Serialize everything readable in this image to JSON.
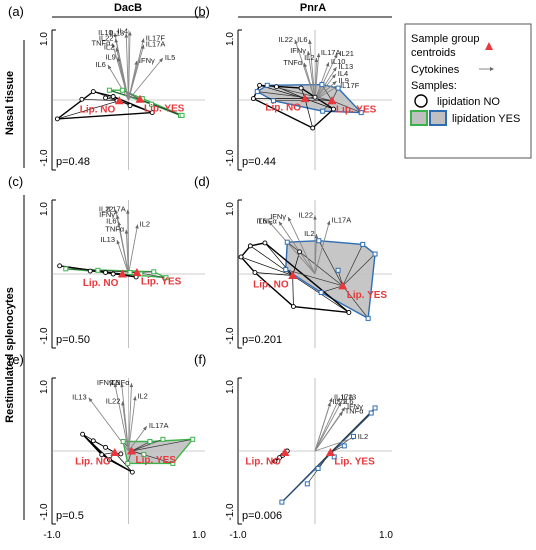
{
  "figure": {
    "col_titles": [
      "DacB",
      "PnrA"
    ],
    "row_titles": [
      "Nasal tissue",
      "Restimulated splenocytes"
    ]
  },
  "legend": {
    "centroid_label_line1": "Sample group",
    "centroid_label_line2": "centroids",
    "cytokines_label": "Cytokines",
    "samples_label": "Samples:",
    "lip_no_label": "lipidation NO",
    "lip_yes_label": "lipidation YES"
  },
  "colors": {
    "centroid": "#e8383d",
    "lip_no": "#000000",
    "lip_yes_dacb": "#3bb34a",
    "lip_yes_pnra": "#2e6db4",
    "hull_fill": "#c0c0c0",
    "arrow": "#888888"
  },
  "chart_data": [
    {
      "id": "a",
      "type": "scatter",
      "panel_label": "(a)",
      "xlim": [
        -1,
        1
      ],
      "ylim": [
        -1,
        1
      ],
      "x_ticks": [],
      "y_ticks": [
        "1.0",
        "-1.0"
      ],
      "p_value": "p=0.48",
      "yes_color": "lip_yes_dacb",
      "arrows": [
        {
          "name": "IL10",
          "x": -0.18,
          "y": 0.96
        },
        {
          "name": "IL22",
          "x": -0.17,
          "y": 0.88
        },
        {
          "name": "TNFα",
          "x": -0.21,
          "y": 0.81
        },
        {
          "name": "IL2",
          "x": -0.16,
          "y": 0.75
        },
        {
          "name": "IL9",
          "x": -0.14,
          "y": 0.61
        },
        {
          "name": "IL6",
          "x": -0.27,
          "y": 0.5
        },
        {
          "name": "IFNγ",
          "x": 0.11,
          "y": 0.56
        },
        {
          "name": "IL13",
          "x": -0.03,
          "y": 0.95
        },
        {
          "name": "IL4",
          "x": 0.02,
          "y": 0.98
        },
        {
          "name": "IL17F",
          "x": 0.2,
          "y": 0.88
        },
        {
          "name": "IL17A",
          "x": 0.2,
          "y": 0.79
        },
        {
          "name": "IL5",
          "x": 0.45,
          "y": 0.6
        }
      ],
      "centroids": [
        {
          "label": "Lip. NO",
          "x": -0.12,
          "y": -0.01
        },
        {
          "label": "Lip. YES",
          "x": 0.15,
          "y": 0.01
        }
      ],
      "no_points": [
        [
          -0.93,
          -0.27
        ],
        [
          -0.61,
          0.01
        ],
        [
          -0.46,
          0.12
        ],
        [
          -0.2,
          0.05
        ],
        [
          0.02,
          -0.08
        ],
        [
          0.31,
          -0.18
        ],
        [
          -0.15,
          -0.01
        ],
        [
          -0.3,
          0.03
        ]
      ],
      "no_hull": [
        [
          -0.93,
          -0.27
        ],
        [
          -0.46,
          0.12
        ],
        [
          -0.2,
          0.05
        ],
        [
          0.31,
          -0.18
        ]
      ],
      "yes_points": [
        [
          -0.25,
          0.14
        ],
        [
          -0.08,
          0.14
        ],
        [
          0.3,
          -0.06
        ],
        [
          0.68,
          -0.22
        ],
        [
          0.7,
          -0.22
        ],
        [
          0.18,
          0.02
        ]
      ],
      "yes_hull": [
        [
          -0.25,
          0.14
        ],
        [
          -0.08,
          0.14
        ],
        [
          0.7,
          -0.22
        ],
        [
          0.68,
          -0.22
        ],
        [
          0.3,
          -0.06
        ]
      ],
      "shade_yes": false
    },
    {
      "id": "b",
      "type": "scatter",
      "panel_label": "(b)",
      "xlim": [
        -1,
        1
      ],
      "ylim": [
        -1,
        1
      ],
      "x_ticks": [],
      "y_ticks": [
        "1.0",
        "-1.0"
      ],
      "p_value": "p=0.44",
      "yes_color": "lip_yes_pnra",
      "arrows": [
        {
          "name": "IL22",
          "x": -0.26,
          "y": 0.86
        },
        {
          "name": "IL6",
          "x": -0.07,
          "y": 0.86
        },
        {
          "name": "IFNγ",
          "x": -0.09,
          "y": 0.7
        },
        {
          "name": "TNFα",
          "x": -0.14,
          "y": 0.53
        },
        {
          "name": "IL17A",
          "x": 0.05,
          "y": 0.67
        },
        {
          "name": "IL21",
          "x": 0.29,
          "y": 0.66
        },
        {
          "name": "IL2",
          "x": 0.02,
          "y": 0.6
        },
        {
          "name": "IL10",
          "x": 0.18,
          "y": 0.54
        },
        {
          "name": "IL13",
          "x": 0.28,
          "y": 0.47
        },
        {
          "name": "IL4",
          "x": 0.27,
          "y": 0.37
        },
        {
          "name": "IL9",
          "x": 0.28,
          "y": 0.27
        },
        {
          "name": "IL17F",
          "x": 0.3,
          "y": 0.2
        }
      ],
      "centroids": [
        {
          "label": "Lip. NO",
          "x": -0.13,
          "y": 0.02
        },
        {
          "label": "Lip. YES",
          "x": 0.22,
          "y": -0.01
        }
      ],
      "no_points": [
        [
          -0.8,
          0.02
        ],
        [
          -0.72,
          0.21
        ],
        [
          -0.5,
          0.19
        ],
        [
          -0.18,
          0.17
        ],
        [
          -0.03,
          -0.4
        ],
        [
          0.24,
          -0.13
        ],
        [
          0.0,
          0.04
        ]
      ],
      "no_hull": [
        [
          -0.8,
          0.02
        ],
        [
          -0.72,
          0.21
        ],
        [
          -0.18,
          0.17
        ],
        [
          0.24,
          -0.13
        ],
        [
          -0.03,
          -0.4
        ]
      ],
      "yes_points": [
        [
          -0.75,
          0.12
        ],
        [
          -0.54,
          -0.01
        ],
        [
          -0.62,
          0.21
        ],
        [
          0.09,
          0.22
        ],
        [
          0.3,
          0.17
        ],
        [
          0.6,
          -0.18
        ],
        [
          0.1,
          -0.16
        ]
      ],
      "yes_hull": [
        [
          -0.75,
          0.12
        ],
        [
          -0.62,
          0.21
        ],
        [
          0.09,
          0.22
        ],
        [
          0.3,
          0.17
        ],
        [
          0.6,
          -0.18
        ],
        [
          0.1,
          -0.16
        ],
        [
          -0.54,
          -0.01
        ]
      ],
      "shade_yes": true
    },
    {
      "id": "c",
      "type": "scatter",
      "panel_label": "(c)",
      "xlim": [
        -1,
        1
      ],
      "ylim": [
        -1,
        1
      ],
      "x_ticks": [],
      "y_ticks": [
        "1.0",
        "-1.0"
      ],
      "p_value": "p=0.50",
      "yes_color": "lip_yes_dacb",
      "arrows": [
        {
          "name": "IL22",
          "x": -0.17,
          "y": 0.87
        },
        {
          "name": "IFNγ",
          "x": -0.15,
          "y": 0.8
        },
        {
          "name": "IL6",
          "x": -0.13,
          "y": 0.71
        },
        {
          "name": "TNFα",
          "x": -0.03,
          "y": 0.6
        },
        {
          "name": "IL13",
          "x": -0.15,
          "y": 0.46
        },
        {
          "name": "IL17A",
          "x": -0.01,
          "y": 0.87
        },
        {
          "name": "IL2",
          "x": 0.12,
          "y": 0.67
        }
      ],
      "centroids": [
        {
          "label": "Lip. NO",
          "x": -0.08,
          "y": 0.0
        },
        {
          "label": "Lip. YES",
          "x": 0.11,
          "y": 0.02
        }
      ],
      "no_points": [
        [
          -0.9,
          0.11
        ],
        [
          -0.5,
          0.04
        ],
        [
          -0.2,
          0.0
        ],
        [
          0.1,
          -0.04
        ],
        [
          -0.3,
          0.02
        ]
      ],
      "no_hull": [
        [
          -0.9,
          0.11
        ],
        [
          0.1,
          -0.04
        ]
      ],
      "yes_points": [
        [
          -0.82,
          0.07
        ],
        [
          -0.4,
          0.05
        ],
        [
          0.02,
          0.02
        ],
        [
          0.33,
          0.03
        ],
        [
          0.49,
          -0.05
        ],
        [
          0.16,
          0.0
        ]
      ],
      "yes_hull": [
        [
          -0.82,
          0.07
        ],
        [
          0.33,
          0.03
        ],
        [
          0.49,
          -0.05
        ]
      ],
      "shade_yes": false
    },
    {
      "id": "d",
      "type": "scatter",
      "panel_label": "(d)",
      "xlim": [
        -1,
        1
      ],
      "ylim": [
        -1,
        1
      ],
      "x_ticks": [],
      "y_ticks": [
        "1.0",
        "-1.0"
      ],
      "p_value": "p=0.201",
      "yes_color": "lip_yes_pnra",
      "arrows": [
        {
          "name": "IL6",
          "x": -0.6,
          "y": 0.71
        },
        {
          "name": "TNFα",
          "x": -0.47,
          "y": 0.71
        },
        {
          "name": "IFNγ",
          "x": -0.35,
          "y": 0.77
        },
        {
          "name": "IL22",
          "x": 0.0,
          "y": 0.79
        },
        {
          "name": "IL17A",
          "x": 0.19,
          "y": 0.72
        },
        {
          "name": "IL2",
          "x": 0.02,
          "y": 0.54
        }
      ],
      "centroids": [
        {
          "label": "Lip. NO",
          "x": -0.29,
          "y": -0.02
        },
        {
          "label": "Lip. YES",
          "x": 0.36,
          "y": -0.16
        }
      ],
      "no_points": [
        [
          -0.96,
          0.23
        ],
        [
          -0.84,
          0.38
        ],
        [
          -0.65,
          0.42
        ],
        [
          -0.78,
          0.02
        ],
        [
          -0.28,
          -0.44
        ],
        [
          0.44,
          -0.52
        ],
        [
          -0.2,
          0.3
        ]
      ],
      "no_hull": [
        [
          -0.96,
          0.23
        ],
        [
          -0.84,
          0.38
        ],
        [
          -0.65,
          0.42
        ],
        [
          0.44,
          -0.52
        ],
        [
          -0.28,
          -0.44
        ],
        [
          -0.78,
          0.02
        ]
      ],
      "yes_points": [
        [
          -0.36,
          0.43
        ],
        [
          -0.38,
          0.06
        ],
        [
          0.05,
          0.45
        ],
        [
          0.62,
          0.4
        ],
        [
          0.78,
          0.27
        ],
        [
          0.69,
          -0.6
        ],
        [
          0.08,
          -0.25
        ],
        [
          0.3,
          0.05
        ]
      ],
      "yes_hull": [
        [
          -0.36,
          0.43
        ],
        [
          0.05,
          0.45
        ],
        [
          0.62,
          0.4
        ],
        [
          0.78,
          0.27
        ],
        [
          0.69,
          -0.6
        ],
        [
          0.08,
          -0.25
        ],
        [
          -0.38,
          0.06
        ]
      ],
      "shade_yes": true
    },
    {
      "id": "e",
      "type": "scatter",
      "panel_label": "(e)",
      "xlim": [
        -1,
        1
      ],
      "ylim": [
        -1,
        1
      ],
      "x_ticks": [
        "-1.0",
        "1.0"
      ],
      "y_ticks": [
        "1.0",
        "-1.0"
      ],
      "p_value": "p=0.5",
      "yes_color": "lip_yes_dacb",
      "arrows": [
        {
          "name": "IFNγ",
          "x": -0.18,
          "y": 0.93
        },
        {
          "name": "IL6",
          "x": -0.09,
          "y": 0.93
        },
        {
          "name": "TNFα",
          "x": 0.04,
          "y": 0.93
        },
        {
          "name": "IL13",
          "x": -0.52,
          "y": 0.73
        },
        {
          "name": "IL22",
          "x": -0.08,
          "y": 0.68
        },
        {
          "name": "IL2",
          "x": 0.09,
          "y": 0.75
        },
        {
          "name": "IL17A",
          "x": 0.24,
          "y": 0.34
        }
      ],
      "centroids": [
        {
          "label": "Lip. NO",
          "x": -0.18,
          "y": -0.02
        },
        {
          "label": "Lip. YES",
          "x": 0.04,
          "y": 0.0
        }
      ],
      "no_points": [
        [
          -0.6,
          0.23
        ],
        [
          -0.46,
          0.14
        ],
        [
          -0.35,
          -0.05
        ],
        [
          -0.25,
          -0.12
        ],
        [
          0.05,
          -0.29
        ],
        [
          -0.1,
          -0.04
        ],
        [
          -0.3,
          0.05
        ]
      ],
      "no_hull": [
        [
          -0.6,
          0.23
        ],
        [
          -0.25,
          -0.12
        ],
        [
          0.05,
          -0.29
        ],
        [
          -0.35,
          -0.05
        ]
      ],
      "yes_points": [
        [
          -0.07,
          0.13
        ],
        [
          0.28,
          0.13
        ],
        [
          0.45,
          0.16
        ],
        [
          0.84,
          0.16
        ],
        [
          0.58,
          -0.17
        ],
        [
          -0.01,
          -0.17
        ],
        [
          0.2,
          -0.05
        ]
      ],
      "yes_hull": [
        [
          -0.07,
          0.13
        ],
        [
          0.28,
          0.13
        ],
        [
          0.84,
          0.16
        ],
        [
          0.58,
          -0.17
        ],
        [
          -0.01,
          -0.17
        ]
      ],
      "shade_yes": true
    },
    {
      "id": "f",
      "type": "scatter",
      "panel_label": "(f)",
      "xlim": [
        -1,
        1
      ],
      "ylim": [
        -1,
        1
      ],
      "x_ticks": [
        "-1.0",
        "1.0"
      ],
      "y_ticks": [
        "1.0",
        "-1.0"
      ],
      "p_value": "p=0.006",
      "yes_color": "lip_yes_pnra",
      "arrows": [
        {
          "name": "IL17A",
          "x": 0.22,
          "y": 0.73
        },
        {
          "name": "IL22",
          "x": 0.2,
          "y": 0.67
        },
        {
          "name": "IL13",
          "x": 0.32,
          "y": 0.73
        },
        {
          "name": "IL6",
          "x": 0.34,
          "y": 0.67
        },
        {
          "name": "IFNγ",
          "x": 0.39,
          "y": 0.6
        },
        {
          "name": "TNFα",
          "x": 0.36,
          "y": 0.54
        },
        {
          "name": "IL2",
          "x": 0.53,
          "y": 0.19
        }
      ],
      "centroids": [
        {
          "label": "Lip. NO",
          "x": -0.39,
          "y": -0.02
        },
        {
          "label": "Lip. YES",
          "x": 0.2,
          "y": -0.02
        }
      ],
      "no_points": [
        [
          -0.52,
          -0.14
        ],
        [
          -0.46,
          -0.09
        ],
        [
          -0.42,
          -0.06
        ],
        [
          -0.39,
          -0.02
        ],
        [
          -0.36,
          0.0
        ]
      ],
      "no_hull": [
        [
          -0.52,
          -0.14
        ],
        [
          -0.36,
          0.0
        ]
      ],
      "yes_points": [
        [
          -0.43,
          -0.7
        ],
        [
          -0.1,
          -0.45
        ],
        [
          0.04,
          -0.24
        ],
        [
          0.25,
          -0.08
        ],
        [
          0.5,
          0.2
        ],
        [
          0.73,
          0.52
        ],
        [
          0.78,
          0.59
        ],
        [
          0.38,
          0.07
        ]
      ],
      "yes_hull": [
        [
          -0.43,
          -0.7
        ],
        [
          0.78,
          0.59
        ],
        [
          0.73,
          0.52
        ]
      ],
      "shade_yes": true
    }
  ]
}
